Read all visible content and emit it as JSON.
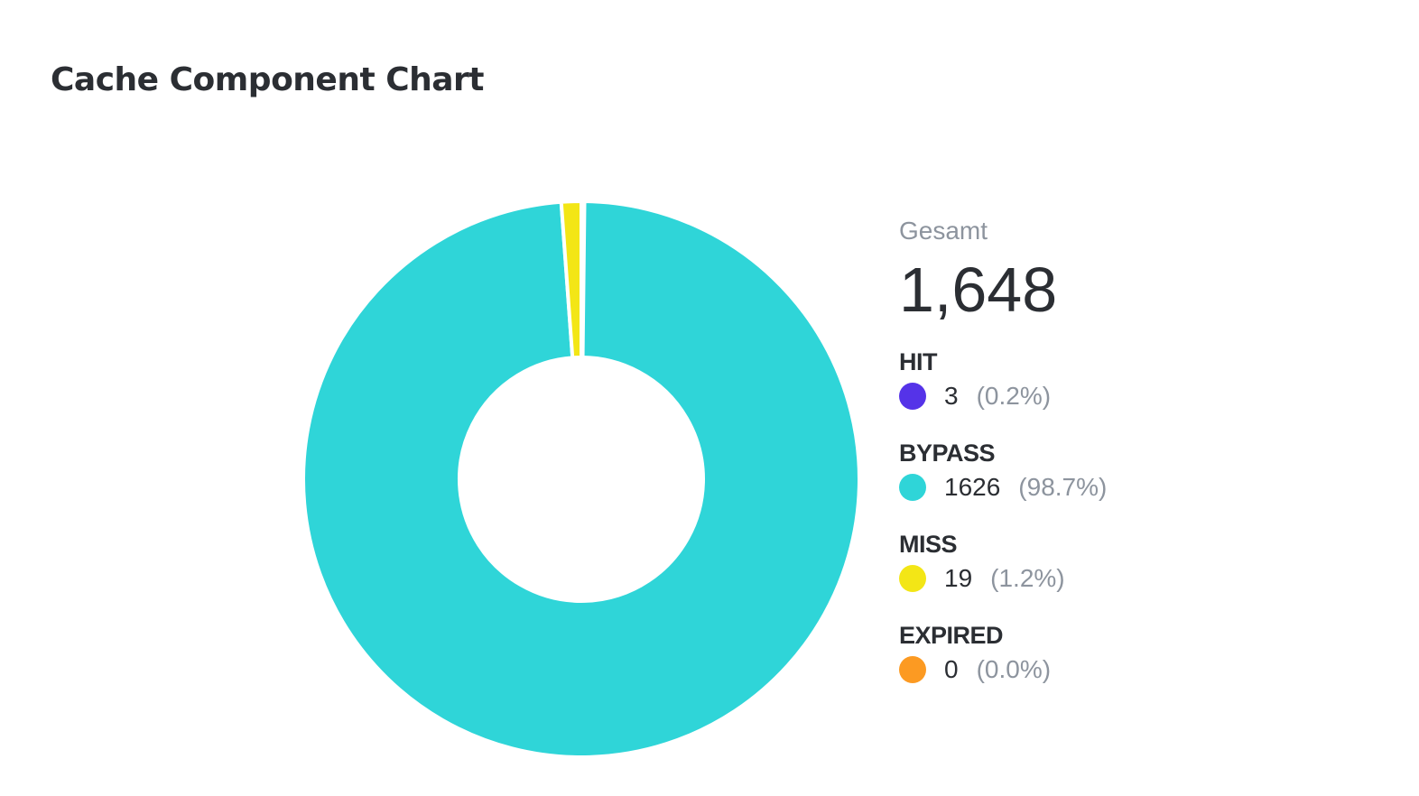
{
  "chart_data": {
    "type": "pie",
    "title": "Cache Component Chart",
    "total_label": "Gesamt",
    "total_value": "1,648",
    "series": [
      {
        "name": "HIT",
        "value": 3,
        "percent_label": "(0.2%)",
        "color": "#5533e8"
      },
      {
        "name": "BYPASS",
        "value": 1626,
        "percent_label": "(98.7%)",
        "color": "#2fd5d8"
      },
      {
        "name": "MISS",
        "value": 19,
        "percent_label": "(1.2%)",
        "color": "#f3e616"
      },
      {
        "name": "EXPIRED",
        "value": 0,
        "percent_label": "(0.0%)",
        "color": "#fc9a22"
      }
    ],
    "donut": true,
    "legend": "right"
  }
}
